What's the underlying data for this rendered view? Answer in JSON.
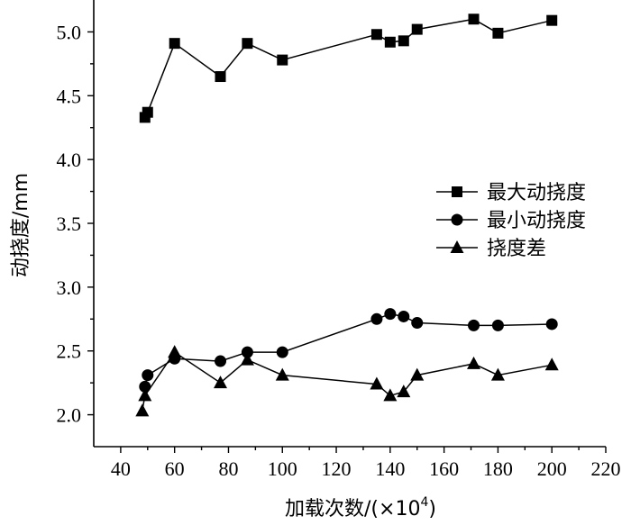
{
  "chart_data": {
    "type": "line",
    "xlabel": "加载次数/(×10",
    "xlabel_sup": "4",
    "xlabel_end": ")",
    "ylabel": "动挠度/mm",
    "xlim": [
      30,
      220
    ],
    "ylim": [
      1.75,
      5.25
    ],
    "xticks": [
      40,
      60,
      80,
      100,
      120,
      140,
      160,
      180,
      200,
      220
    ],
    "xtick_labels": [
      "40",
      "60",
      "80",
      "100",
      "120",
      "140",
      "160",
      "180",
      "200",
      "220"
    ],
    "yticks": [
      2.0,
      2.5,
      3.0,
      3.5,
      4.0,
      4.5,
      5.0
    ],
    "ytick_labels": [
      "2.0",
      "2.5",
      "3.0",
      "3.5",
      "4.0",
      "4.5",
      "5.0"
    ],
    "legend_position": "right-middle",
    "series": [
      {
        "name": "最大动挠度",
        "marker": "square",
        "x": [
          49,
          50,
          60,
          77,
          87,
          100,
          135,
          140,
          145,
          150,
          171,
          180,
          200
        ],
        "y": [
          4.33,
          4.37,
          4.91,
          4.65,
          4.91,
          4.78,
          4.98,
          4.92,
          4.93,
          5.02,
          5.1,
          4.99,
          5.09
        ]
      },
      {
        "name": "最小动挠度",
        "marker": "circle",
        "x": [
          49,
          50,
          60,
          77,
          87,
          100,
          135,
          140,
          145,
          150,
          171,
          180,
          200
        ],
        "y": [
          2.22,
          2.31,
          2.44,
          2.42,
          2.49,
          2.49,
          2.75,
          2.79,
          2.77,
          2.72,
          2.7,
          2.7,
          2.71
        ]
      },
      {
        "name": "挠度差",
        "marker": "triangle",
        "x": [
          48,
          49,
          60,
          77,
          87,
          100,
          135,
          140,
          145,
          150,
          171,
          180,
          200
        ],
        "y": [
          2.03,
          2.15,
          2.49,
          2.25,
          2.43,
          2.31,
          2.24,
          2.15,
          2.18,
          2.31,
          2.4,
          2.31,
          2.39
        ]
      }
    ]
  }
}
